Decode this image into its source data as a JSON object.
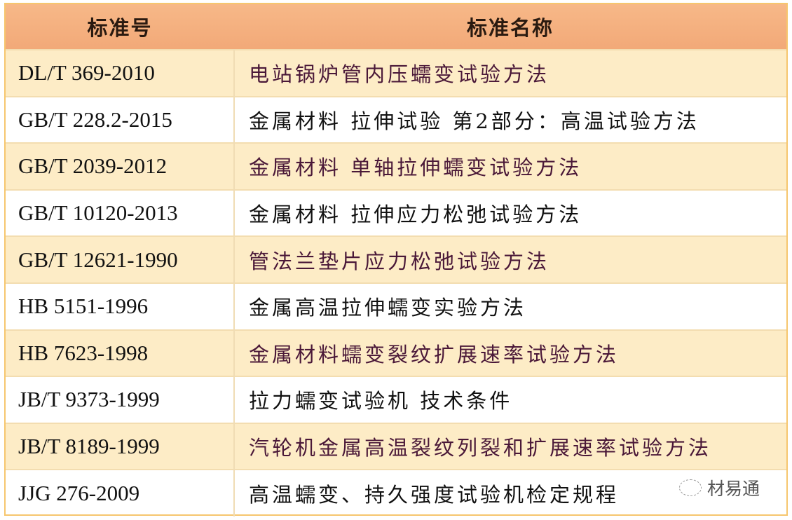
{
  "table": {
    "headers": [
      "标准号",
      "标准名称"
    ],
    "rows": [
      {
        "code": "DL/T 369-2010",
        "name": "电站锅炉管内压蠕变试验方法"
      },
      {
        "code": "GB/T 228.2-2015",
        "name": "金属材料 拉伸试验 第2部分：高温试验方法"
      },
      {
        "code": "GB/T 2039-2012",
        "name": "金属材料 单轴拉伸蠕变试验方法"
      },
      {
        "code": "GB/T 10120-2013",
        "name": "金属材料 拉伸应力松弛试验方法"
      },
      {
        "code": "GB/T 12621-1990",
        "name": "管法兰垫片应力松弛试验方法"
      },
      {
        "code": "HB 5151-1996",
        "name": "金属高温拉伸蠕变实验方法"
      },
      {
        "code": "HB 7623-1998",
        "name": "金属材料蠕变裂纹扩展速率试验方法"
      },
      {
        "code": "JB/T 9373-1999",
        "name": "拉力蠕变试验机 技术条件"
      },
      {
        "code": "JB/T 8189-1999",
        "name": "汽轮机金属高温裂纹列裂和扩展速率试验方法"
      },
      {
        "code": "JJG 276-2009",
        "name": "高温蠕变、持久强度试验机检定规程"
      }
    ]
  },
  "watermark": {
    "text": "材易通",
    "icon": "wechat-icon"
  },
  "colors": {
    "header": "#f5b07f",
    "alt_row": "#fdecc6",
    "border": "#f6c66e"
  }
}
